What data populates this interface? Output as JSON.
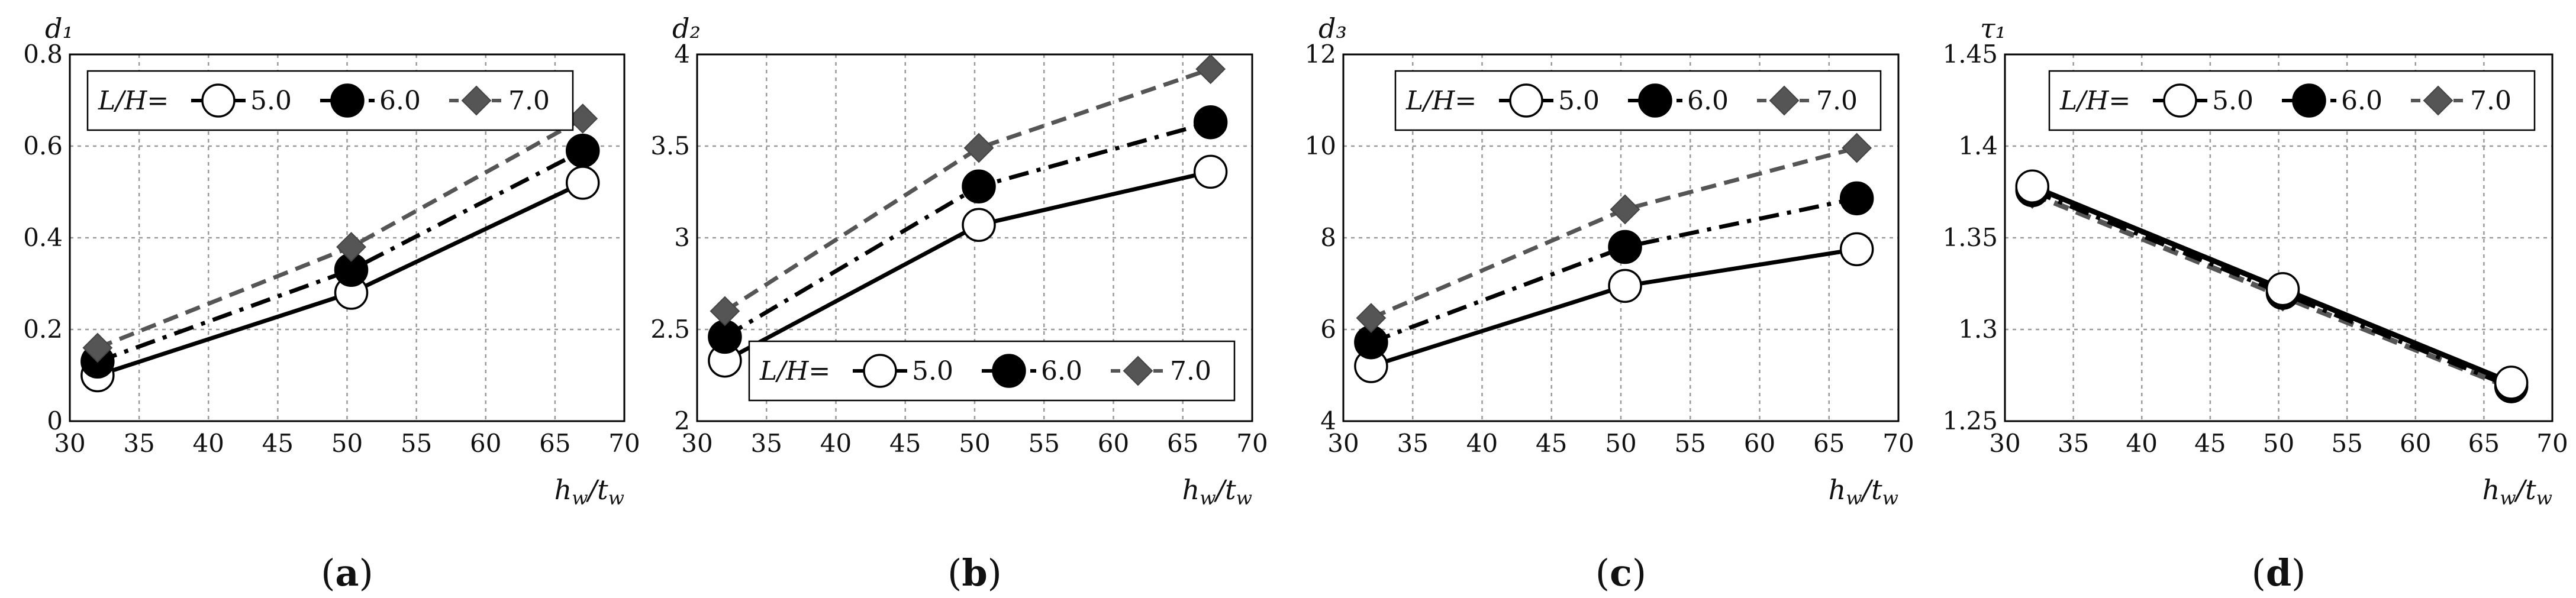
{
  "colors": {
    "s50": "#000000",
    "s60": "#000000",
    "s70": "#555555",
    "grid": "#9a9a9a",
    "axis": "#000000"
  },
  "chart_data": [
    {
      "type": "line",
      "label": "(a)",
      "ylabel": "d₁",
      "xlabel": "h_w/t_w",
      "xlim": [
        30,
        70
      ],
      "ylim": [
        0,
        0.8
      ],
      "xticks": [
        "30",
        "35",
        "40",
        "45",
        "50",
        "55",
        "60",
        "65",
        "70"
      ],
      "yticks": [
        "0",
        "0.2",
        "0.4",
        "0.6",
        "0.8"
      ],
      "x": [
        32,
        50.3,
        67
      ],
      "legend": {
        "prefix": "L/H=",
        "position": "top-left"
      },
      "series": [
        {
          "name": "5.0",
          "values": [
            0.1,
            0.28,
            0.52
          ]
        },
        {
          "name": "6.0",
          "values": [
            0.13,
            0.33,
            0.59
          ]
        },
        {
          "name": "7.0",
          "values": [
            0.16,
            0.38,
            0.66
          ]
        }
      ]
    },
    {
      "type": "line",
      "label": "(b)",
      "ylabel": "d₂",
      "xlabel": "h_w/t_w",
      "xlim": [
        30,
        70
      ],
      "ylim": [
        2,
        4
      ],
      "xticks": [
        "30",
        "35",
        "40",
        "45",
        "50",
        "55",
        "60",
        "65",
        "70"
      ],
      "yticks": [
        "2",
        "2.5",
        "3",
        "3.5",
        "4"
      ],
      "x": [
        32,
        50.3,
        67
      ],
      "legend": {
        "prefix": "L/H=",
        "position": "bottom-right"
      },
      "series": [
        {
          "name": "5.0",
          "values": [
            2.33,
            3.07,
            3.36
          ]
        },
        {
          "name": "6.0",
          "values": [
            2.46,
            3.28,
            3.63
          ]
        },
        {
          "name": "7.0",
          "values": [
            2.6,
            3.49,
            3.92
          ]
        }
      ]
    },
    {
      "type": "line",
      "label": "(c)",
      "ylabel": "d₃",
      "xlabel": "h_w/t_w",
      "xlim": [
        30,
        70
      ],
      "ylim": [
        4,
        12
      ],
      "xticks": [
        "30",
        "35",
        "40",
        "45",
        "50",
        "55",
        "60",
        "65",
        "70"
      ],
      "yticks": [
        "4",
        "6",
        "8",
        "10",
        "12"
      ],
      "x": [
        32,
        50.3,
        67
      ],
      "legend": {
        "prefix": "L/H=",
        "position": "top-right"
      },
      "series": [
        {
          "name": "5.0",
          "values": [
            5.2,
            6.95,
            7.75
          ]
        },
        {
          "name": "6.0",
          "values": [
            5.72,
            7.8,
            8.86
          ]
        },
        {
          "name": "7.0",
          "values": [
            6.25,
            8.62,
            9.96
          ]
        }
      ]
    },
    {
      "type": "line",
      "label": "(d)",
      "ylabel": "τ₁",
      "xlabel": "h_w/t_w",
      "xlim": [
        30,
        70
      ],
      "ylim": [
        1.25,
        1.45
      ],
      "xticks": [
        "30",
        "35",
        "40",
        "45",
        "50",
        "55",
        "60",
        "65",
        "70"
      ],
      "yticks": [
        "1.25",
        "1.3",
        "1.35",
        "1.4",
        "1.45"
      ],
      "x": [
        32,
        50.3,
        67
      ],
      "legend": {
        "prefix": "L/H=",
        "position": "top-right"
      },
      "series": [
        {
          "name": "5.0",
          "values": [
            1.378,
            1.322,
            1.271
          ]
        },
        {
          "name": "6.0",
          "values": [
            1.376,
            1.32,
            1.269
          ]
        },
        {
          "name": "7.0",
          "values": [
            1.374,
            1.318,
            1.268
          ]
        }
      ]
    }
  ]
}
